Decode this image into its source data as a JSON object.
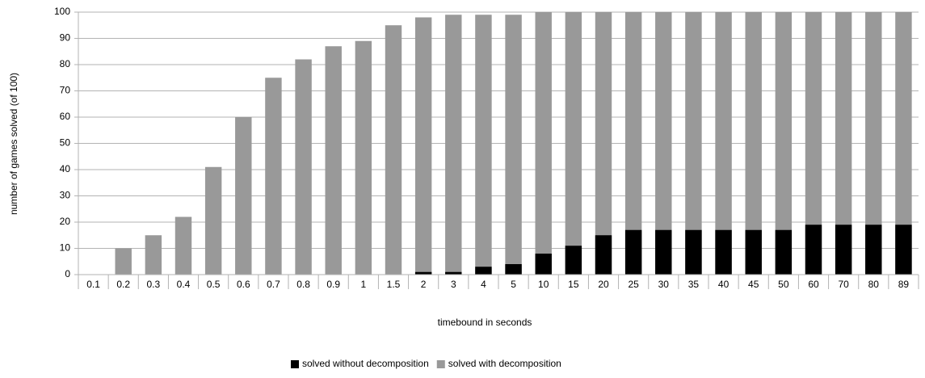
{
  "chart_data": {
    "type": "bar",
    "stacked": false,
    "x_label": "timebound in seconds",
    "y_label": "number of games solved (of 100)",
    "categories": [
      "0.1",
      "0.2",
      "0.3",
      "0.4",
      "0.5",
      "0.6",
      "0.7",
      "0.8",
      "0.9",
      "1",
      "1.5",
      "2",
      "3",
      "4",
      "5",
      "10",
      "15",
      "20",
      "25",
      "30",
      "35",
      "40",
      "45",
      "50",
      "60",
      "70",
      "80",
      "89"
    ],
    "series": [
      {
        "name": "solved with decomposition",
        "color": "#999999",
        "values": [
          0,
          10,
          15,
          22,
          41,
          60,
          75,
          82,
          87,
          89,
          95,
          98,
          99,
          99,
          99,
          100,
          100,
          100,
          100,
          100,
          100,
          100,
          100,
          100,
          100,
          100,
          100,
          100
        ]
      },
      {
        "name": "solved without decomposition",
        "color": "#000000",
        "values": [
          0,
          0,
          0,
          0,
          0,
          0,
          0,
          0,
          0,
          0,
          0,
          1,
          1,
          3,
          4,
          8,
          11,
          15,
          17,
          17,
          17,
          17,
          17,
          17,
          19,
          19,
          19,
          19
        ]
      }
    ],
    "legend_order": [
      1,
      0
    ],
    "ylim": [
      0,
      100
    ],
    "yticks": [
      0,
      10,
      20,
      30,
      40,
      50,
      60,
      70,
      80,
      90,
      100
    ],
    "grid": true
  }
}
